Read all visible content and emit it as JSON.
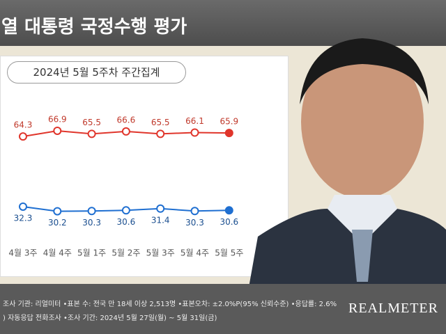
{
  "header": {
    "title": "열 대통령 국정수행 평가",
    "subtitle": "2024년 5월 5주차 주간집계"
  },
  "chart_data": {
    "type": "line",
    "categories": [
      "4월 3주",
      "4월 4주",
      "5월 1주",
      "5월 2주",
      "5월 3주",
      "5월 4주",
      "5월 5주"
    ],
    "series": [
      {
        "color": "#e0352b",
        "values": [
          64.3,
          66.9,
          65.5,
          66.6,
          65.5,
          66.1,
          65.9
        ]
      },
      {
        "color": "#1f6fd1",
        "values": [
          32.3,
          30.2,
          30.3,
          30.6,
          31.4,
          30.3,
          30.6
        ]
      }
    ]
  },
  "footer": {
    "line1": "조사 기관: 리얼미터 •표본 수: 전국 만 18세 이상 2,513명 •표본오차: ±2.0%P(95% 신뢰수준) •응답률: 2.6%",
    "line2": ") 자동응답 전화조사 •조사 기간: 2024년 5월 27일(월) ~ 5월 31일(금)",
    "brand": "REALMETER"
  }
}
